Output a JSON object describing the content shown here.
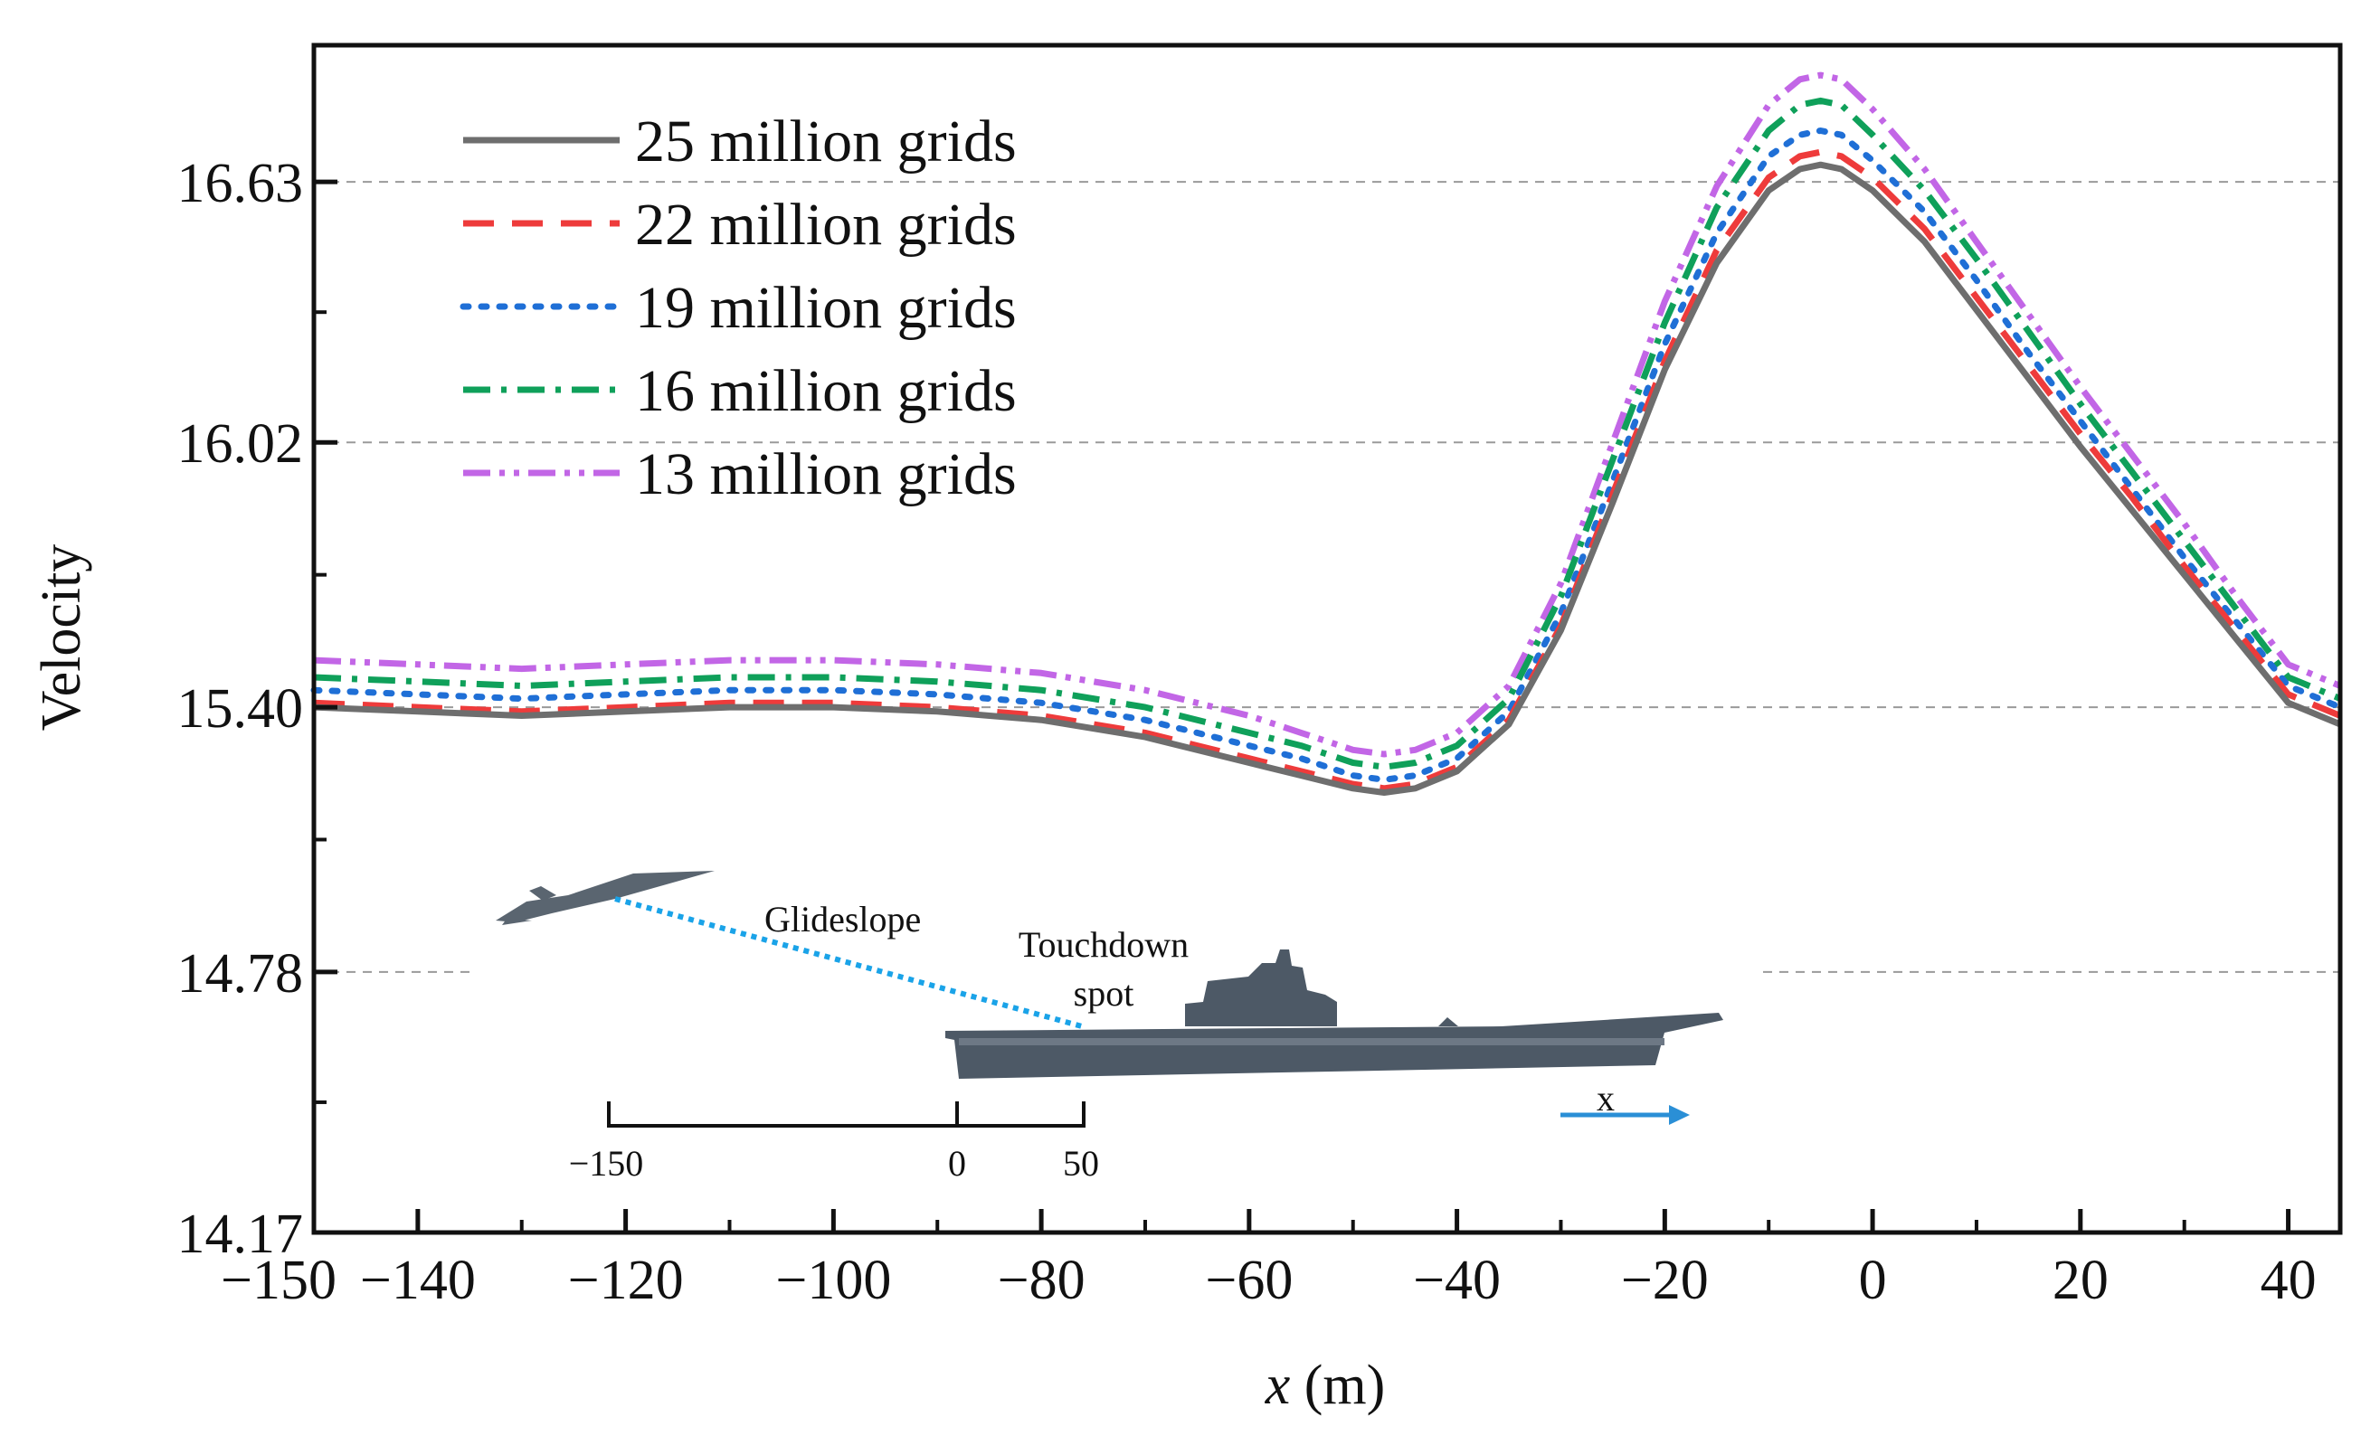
{
  "chart_data": {
    "type": "line",
    "title": "",
    "xlabel_var": "x",
    "xlabel_unit": " (m)",
    "ylabel": "Velocity",
    "xlim": [
      -150,
      45
    ],
    "ylim": [
      14.17,
      16.95
    ],
    "xticks": [
      -150,
      -140,
      -120,
      -100,
      -80,
      -60,
      -40,
      -20,
      0,
      20,
      40
    ],
    "xtick_labels": [
      "−150",
      "−140",
      "−120",
      "−100",
      "−80",
      "−60",
      "−40",
      "−20",
      "0",
      "20",
      "40"
    ],
    "yticks": [
      14.17,
      14.78,
      15.4,
      16.02,
      16.63
    ],
    "ytick_labels": [
      "14.17",
      "14.78",
      "15.40",
      "16.02",
      "16.63"
    ],
    "grid": "horizontal dashed",
    "legend_position": "top-left",
    "series": [
      {
        "name": "25 million grids",
        "color": "#6e6e6e",
        "dash": "solid",
        "x": [
          -150,
          -140,
          -130,
          -120,
          -110,
          -100,
          -90,
          -80,
          -70,
          -60,
          -55,
          -50,
          -47,
          -44,
          -40,
          -35,
          -30,
          -25,
          -20,
          -15,
          -10,
          -7,
          -5,
          -3,
          0,
          5,
          10,
          15,
          20,
          25,
          30,
          35,
          40,
          45
        ],
        "y": [
          15.4,
          15.39,
          15.38,
          15.39,
          15.4,
          15.4,
          15.39,
          15.37,
          15.33,
          15.27,
          15.24,
          15.21,
          15.2,
          15.21,
          15.25,
          15.36,
          15.58,
          15.88,
          16.19,
          16.44,
          16.61,
          16.66,
          16.67,
          16.66,
          16.61,
          16.49,
          16.33,
          16.17,
          16.01,
          15.86,
          15.71,
          15.56,
          15.41,
          15.36
        ]
      },
      {
        "name": "22 million grids",
        "color": "#ee3b3b",
        "dash": "dashed",
        "x": [
          -150,
          -140,
          -130,
          -120,
          -110,
          -100,
          -90,
          -80,
          -70,
          -60,
          -55,
          -50,
          -47,
          -44,
          -40,
          -35,
          -30,
          -25,
          -20,
          -15,
          -10,
          -7,
          -5,
          -3,
          0,
          5,
          10,
          15,
          20,
          25,
          30,
          35,
          40,
          45
        ],
        "y": [
          15.41,
          15.4,
          15.39,
          15.4,
          15.41,
          15.41,
          15.4,
          15.38,
          15.34,
          15.28,
          15.25,
          15.22,
          15.21,
          15.22,
          15.26,
          15.37,
          15.59,
          15.9,
          16.21,
          16.47,
          16.64,
          16.69,
          16.7,
          16.69,
          16.64,
          16.52,
          16.36,
          16.2,
          16.04,
          15.89,
          15.73,
          15.58,
          15.43,
          15.38
        ]
      },
      {
        "name": "19 million grids",
        "color": "#1f6fd6",
        "dash": "dotted",
        "x": [
          -150,
          -140,
          -130,
          -120,
          -110,
          -100,
          -90,
          -80,
          -70,
          -60,
          -55,
          -50,
          -47,
          -44,
          -40,
          -35,
          -30,
          -25,
          -20,
          -15,
          -10,
          -7,
          -5,
          -3,
          0,
          5,
          10,
          15,
          20,
          25,
          30,
          35,
          40,
          45
        ],
        "y": [
          15.44,
          15.43,
          15.42,
          15.43,
          15.44,
          15.44,
          15.43,
          15.41,
          15.37,
          15.31,
          15.28,
          15.24,
          15.23,
          15.24,
          15.28,
          15.39,
          15.62,
          15.93,
          16.25,
          16.51,
          16.69,
          16.74,
          16.75,
          16.74,
          16.68,
          16.56,
          16.4,
          16.23,
          16.07,
          15.91,
          15.75,
          15.6,
          15.45,
          15.4
        ]
      },
      {
        "name": "16 million grids",
        "color": "#0fa05a",
        "dash": "dashdot",
        "x": [
          -150,
          -140,
          -130,
          -120,
          -110,
          -100,
          -90,
          -80,
          -70,
          -60,
          -55,
          -50,
          -47,
          -44,
          -40,
          -35,
          -30,
          -25,
          -20,
          -15,
          -10,
          -7,
          -5,
          -3,
          0,
          5,
          10,
          15,
          20,
          25,
          30,
          35,
          40,
          45
        ],
        "y": [
          15.47,
          15.46,
          15.45,
          15.46,
          15.47,
          15.47,
          15.46,
          15.44,
          15.4,
          15.34,
          15.31,
          15.27,
          15.26,
          15.27,
          15.31,
          15.42,
          15.66,
          15.98,
          16.3,
          16.57,
          16.75,
          16.81,
          16.82,
          16.81,
          16.74,
          16.61,
          16.45,
          16.28,
          16.11,
          15.95,
          15.79,
          15.63,
          15.47,
          15.42
        ]
      },
      {
        "name": "13 million grids",
        "color": "#c266e6",
        "dash": "dashdotdot",
        "x": [
          -150,
          -140,
          -130,
          -120,
          -110,
          -100,
          -90,
          -80,
          -70,
          -60,
          -55,
          -50,
          -47,
          -44,
          -40,
          -35,
          -30,
          -25,
          -20,
          -15,
          -10,
          -7,
          -5,
          -3,
          0,
          5,
          10,
          15,
          20,
          25,
          30,
          35,
          40,
          45
        ],
        "y": [
          15.51,
          15.5,
          15.49,
          15.5,
          15.51,
          15.51,
          15.5,
          15.48,
          15.44,
          15.38,
          15.34,
          15.3,
          15.29,
          15.3,
          15.34,
          15.45,
          15.69,
          16.02,
          16.35,
          16.62,
          16.81,
          16.87,
          16.88,
          16.87,
          16.8,
          16.66,
          16.49,
          16.32,
          16.15,
          15.99,
          15.83,
          15.66,
          15.5,
          15.45
        ]
      }
    ],
    "inset": {
      "glideslope_label": "Glideslope",
      "touchdown_label_line1": "Touchdown",
      "touchdown_label_line2": "spot",
      "axis_arrow_label": "x",
      "scale_ticks": [
        "−150",
        "0",
        "50"
      ],
      "aircraft_color": "#5a6570",
      "ship_color": "#4d5966",
      "glideslope_color": "#1aa3e8",
      "arrow_color": "#2a8fd6"
    }
  }
}
